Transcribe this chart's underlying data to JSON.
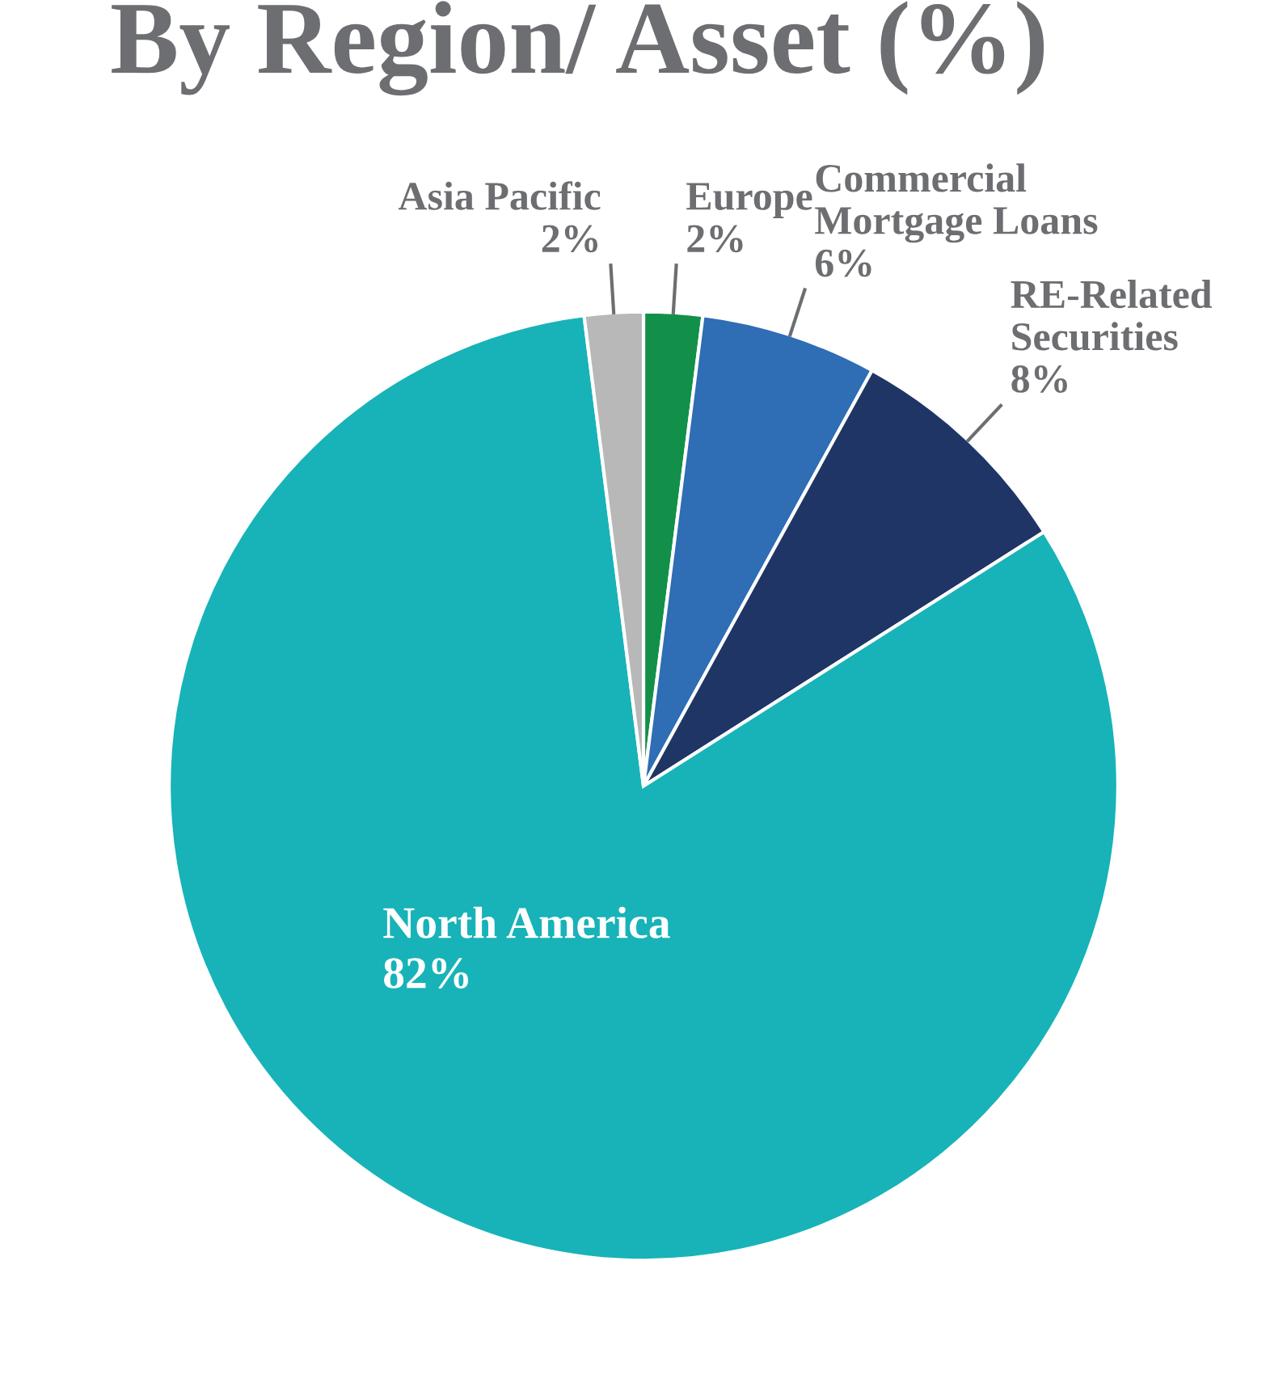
{
  "chart_data": {
    "type": "pie",
    "title": "By Region/ Asset (%)",
    "categories": [
      "Europe",
      "Commercial Mortgage Loans",
      "RE-Related Securities",
      "North America",
      "Asia Pacific"
    ],
    "values": [
      2,
      6,
      8,
      82,
      2
    ],
    "value_labels": [
      "2%",
      "6%",
      "8%",
      "82%",
      "2%"
    ],
    "colors": [
      "#12904a",
      "#2f6db5",
      "#1f3566",
      "#17b3b8",
      "#b8b8b8"
    ],
    "legend": false
  }
}
